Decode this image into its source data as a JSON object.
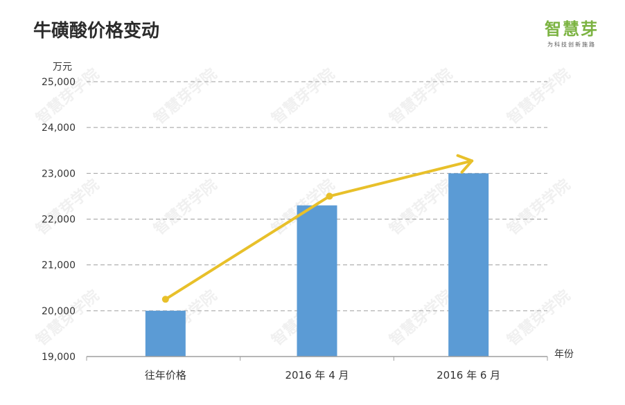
{
  "header": {
    "title": "牛磺酸价格变动",
    "logo_name": "智慧芽",
    "logo_slogan": "为科技创新施路"
  },
  "watermark_text": "智慧芽学院",
  "chart_data": {
    "type": "bar",
    "title": "牛磺酸价格变动",
    "ylabel": "万元",
    "xlabel": "年份",
    "categories": [
      "往年价格",
      "2016 年 4 月",
      "2016 年 6 月"
    ],
    "values": [
      20000,
      22300,
      23000
    ],
    "trend_line": [
      20250,
      22500
    ],
    "ylim": [
      19000,
      25000
    ],
    "yticks": [
      19000,
      20000,
      21000,
      22000,
      23000,
      24000,
      25000
    ],
    "ytick_labels": [
      "19,000",
      "20,000",
      "21,000",
      "22,000",
      "23,000",
      "24,000",
      "25,000"
    ],
    "grid": true,
    "bar_color": "#5b9bd5",
    "trend_color": "#e8c02a"
  }
}
